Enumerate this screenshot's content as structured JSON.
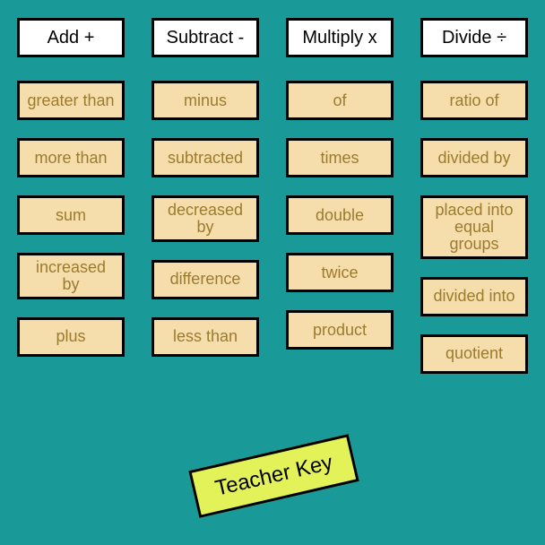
{
  "background_color": "#1a9999",
  "header_style": {
    "bg": "#ffffff",
    "border": "#000000",
    "border_width": 3,
    "font_size": 20,
    "text_color": "#000000"
  },
  "term_style": {
    "bg": "#f5deab",
    "border": "#000000",
    "border_width": 3,
    "font_size": 18,
    "text_color": "#9b7b2e"
  },
  "teacher_key": {
    "label": "Teacher Key",
    "bg": "#e4f25a",
    "border": "#000000",
    "rotation_deg": -13,
    "font_size": 24
  },
  "columns": [
    {
      "header": "Add +",
      "terms": [
        "greater than",
        "more than",
        "sum",
        "increased by",
        "plus"
      ]
    },
    {
      "header": "Subtract -",
      "terms": [
        "minus",
        "subtracted",
        "decreased by",
        "difference",
        "less than"
      ]
    },
    {
      "header": "Multiply x",
      "terms": [
        "of",
        "times",
        "double",
        "twice",
        "product"
      ]
    },
    {
      "header": "Divide ÷",
      "terms": [
        "ratio of",
        "divided by",
        "placed into equal groups",
        "divided into",
        "quotient"
      ]
    }
  ]
}
